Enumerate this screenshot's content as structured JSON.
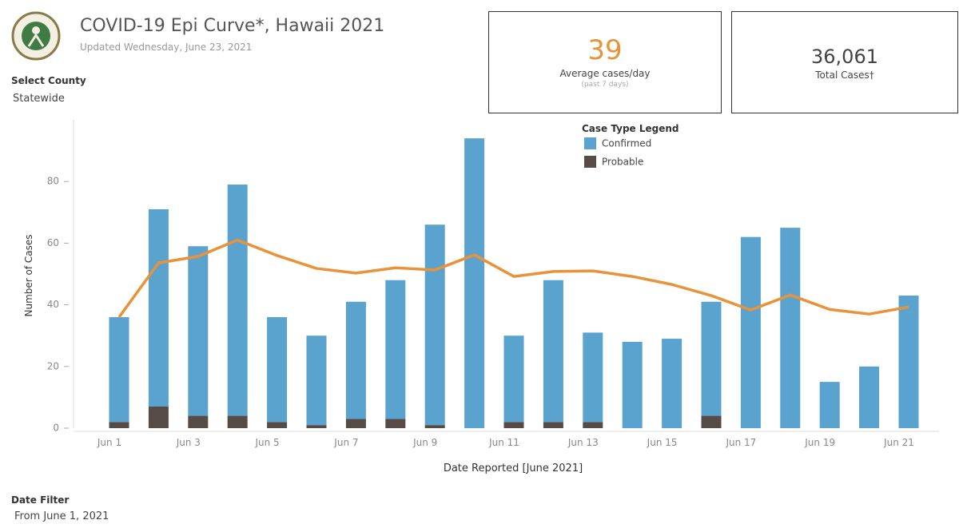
{
  "header": {
    "title": "COVID-19 Epi Curve*, Hawaii 2021",
    "subtitle": "Updated Wednesday, June 23, 2021"
  },
  "county_filter": {
    "label": "Select County",
    "value": "Statewide"
  },
  "date_filter": {
    "label": "Date Filter",
    "value": "From June 1, 2021"
  },
  "kpis": [
    {
      "value": "39",
      "label": "Average cases/day",
      "note": "(past 7 days)"
    },
    {
      "value": "36,061",
      "label": "Total Cases†"
    }
  ],
  "chart_data": {
    "type": "bar",
    "stacked": true,
    "y_label": "Number of Cases",
    "x_label": "Date Reported [June 2021]",
    "legend_title": "Case Type Legend",
    "categories": [
      "Jun 1",
      null,
      "Jun 3",
      null,
      "Jun 5",
      null,
      "Jun 7",
      null,
      "Jun 9",
      null,
      "Jun 11",
      null,
      "Jun 13",
      null,
      "Jun 15",
      null,
      "Jun 17",
      null,
      "Jun 19",
      null,
      "Jun 21"
    ],
    "series": [
      {
        "name": "Confirmed",
        "color": "#5ba3cf",
        "values": [
          34,
          64,
          55,
          75,
          34,
          29,
          38,
          45,
          65,
          94,
          28,
          46,
          29,
          28,
          29,
          37,
          62,
          65,
          15,
          20,
          43
        ]
      },
      {
        "name": "Probable",
        "color": "#564b47",
        "values": [
          2,
          7,
          4,
          4,
          2,
          1,
          3,
          3,
          1,
          0,
          2,
          2,
          2,
          0,
          0,
          4,
          0,
          0,
          0,
          0,
          0
        ]
      }
    ],
    "average_line": {
      "color": "#e8923a",
      "values": [
        36,
        53.6,
        55.7,
        61,
        56,
        51.8,
        50.3,
        52,
        51.3,
        56.2,
        49.2,
        50.8,
        51,
        49.2,
        46.6,
        43,
        38.3,
        43.2,
        38.5,
        37,
        39.3
      ]
    },
    "ylim": [
      0,
      100
    ],
    "yticks": [
      0,
      20,
      40,
      60,
      80
    ],
    "grid": false
  }
}
